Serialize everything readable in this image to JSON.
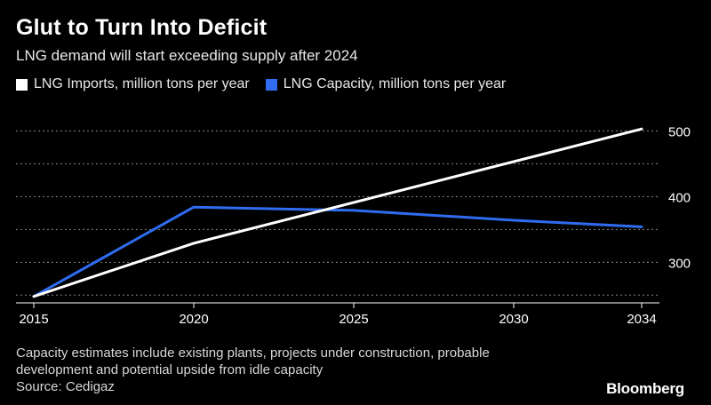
{
  "header": {
    "title": "Glut to Turn Into Deficit",
    "subtitle": "LNG demand will start exceeding supply after 2024"
  },
  "footer": {
    "note_line1": "Capacity estimates include existing plants, projects under construction, probable",
    "note_line2": "development and potential upside from idle capacity",
    "source": "Source: Cedigaz",
    "brand": "Bloomberg"
  },
  "colors": {
    "background": "#000000",
    "imports": "#ffffff",
    "capacity": "#2f6cf0",
    "grid": "#888888",
    "text": "#ffffff"
  },
  "chart_data": {
    "type": "line",
    "title": "Glut to Turn Into Deficit",
    "subtitle": "LNG demand will start exceeding supply after 2024",
    "xlabel": "",
    "ylabel": "",
    "x_ticks": [
      "2015",
      "2020",
      "2025",
      "2030",
      "2034"
    ],
    "y_ticks": [
      "300",
      "400",
      "500"
    ],
    "xlim": [
      2015,
      2034
    ],
    "ylim": [
      245,
      510
    ],
    "grid": true,
    "legend_position": "top-left",
    "series": [
      {
        "name": "LNG Imports, million tons per year",
        "color": "#ffffff",
        "x": [
          2015,
          2020,
          2034
        ],
        "y": [
          248,
          329,
          503
        ]
      },
      {
        "name": "LNG Capacity, million tons per year",
        "color": "#2f6cf0",
        "x": [
          2015,
          2020,
          2025,
          2030,
          2034
        ],
        "y": [
          248,
          384,
          379,
          364,
          354
        ]
      }
    ]
  }
}
